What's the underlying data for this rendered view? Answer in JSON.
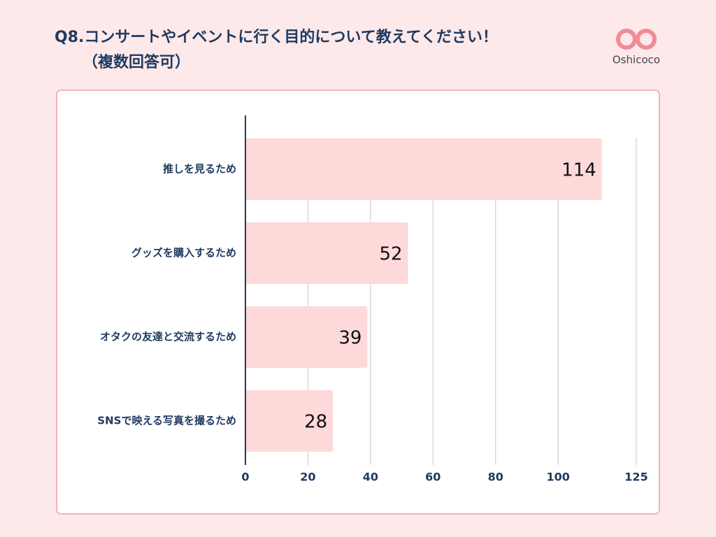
{
  "chart_data": {
    "type": "barh",
    "title": "Q8.コンサートやイベントに行く目的について教えてください！",
    "subtitle": "（複数回答可）",
    "brand": "Oshicoco",
    "categories": [
      "推しを見るため",
      "グッズを購入するため",
      "オタクの友達と交流するため",
      "SNSで映える写真を撮るため"
    ],
    "values": [
      114,
      52,
      39,
      28
    ],
    "color": "#fdd9d9",
    "xlim": [
      0,
      125
    ],
    "xticks": [
      0,
      20,
      40,
      60,
      80,
      100,
      125
    ],
    "grid": true
  }
}
